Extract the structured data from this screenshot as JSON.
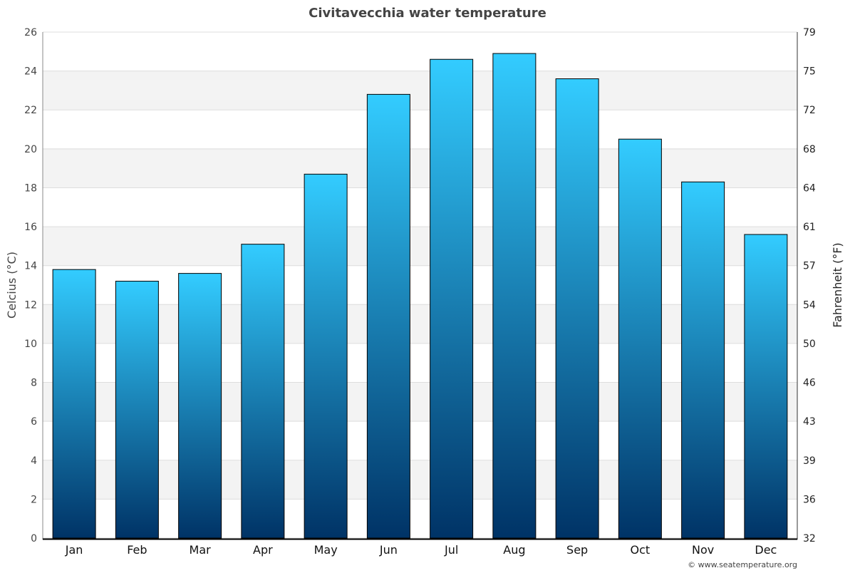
{
  "chart_data": {
    "type": "bar",
    "title": "Civitavecchia water temperature",
    "ylabel": "Celcius (°C)",
    "y2label": "Fahrenheit (°F)",
    "categories": [
      "Jan",
      "Feb",
      "Mar",
      "Apr",
      "May",
      "Jun",
      "Jul",
      "Aug",
      "Sep",
      "Oct",
      "Nov",
      "Dec"
    ],
    "values": [
      13.8,
      13.2,
      13.6,
      15.1,
      18.7,
      22.8,
      24.6,
      24.9,
      23.6,
      20.5,
      18.3,
      15.6
    ],
    "ylim": [
      0,
      26
    ],
    "yticks": [
      0,
      2,
      4,
      6,
      8,
      10,
      12,
      14,
      16,
      18,
      20,
      22,
      24,
      26
    ],
    "y2ticks": [
      "32",
      "36",
      "39",
      "43",
      "46",
      "50",
      "54",
      "57",
      "61",
      "64",
      "68",
      "72",
      "75",
      "79"
    ],
    "grid": true,
    "colors": {
      "bar_top": "#33ccff",
      "bar_bottom": "#003366",
      "band": "#f3f3f3",
      "text": "#444444"
    }
  },
  "credit": "© www.seatemperature.org"
}
